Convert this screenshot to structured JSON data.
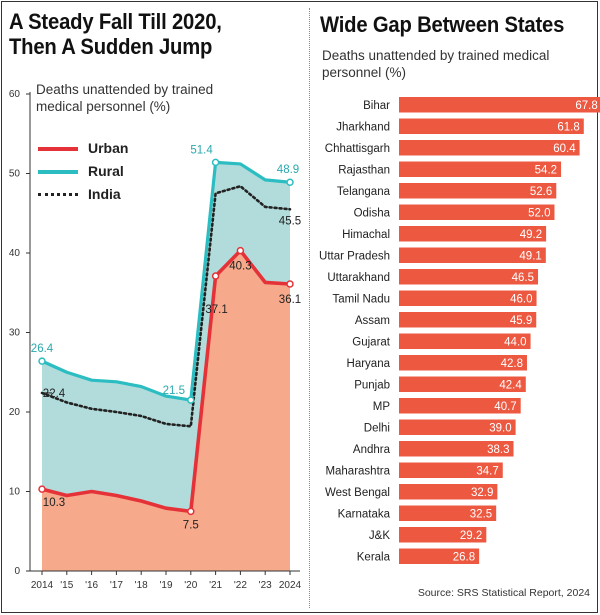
{
  "left": {
    "title_line1": "A Steady Fall Till 2020,",
    "title_line2": "Then A Sudden Jump",
    "subtitle_line1": "Deaths unattended by trained",
    "subtitle_line2": "medical personnel (%)"
  },
  "right": {
    "title": "Wide Gap Between States",
    "subtitle_line1": "Deaths unattended by trained medical",
    "subtitle_line2": "personnel (%)",
    "source": "Source: SRS Statistical Report, 2024"
  },
  "colors": {
    "urban": "#e53238",
    "rural": "#2bbdc1",
    "india": "#222222",
    "urban_fill": "#f7a98b",
    "rural_fill": "#b2dcdb",
    "bar": "#ec5840"
  },
  "chart_data": [
    {
      "type": "line",
      "x": [
        "2014",
        "'15",
        "'16",
        "'17",
        "'18",
        "'19",
        "'20",
        "'21",
        "'22",
        "'23",
        "2024"
      ],
      "ylim": [
        0,
        60
      ],
      "yticks": [
        0,
        10,
        20,
        30,
        40,
        50,
        60
      ],
      "grid": false,
      "legend_position": "top-left",
      "series": [
        {
          "name": "Urban",
          "values": [
            10.3,
            9.5,
            10.0,
            9.5,
            8.8,
            7.9,
            7.5,
            37.1,
            40.3,
            36.3,
            36.1
          ]
        },
        {
          "name": "Rural",
          "values": [
            26.4,
            25.0,
            24.0,
            23.8,
            23.2,
            22.0,
            21.5,
            51.4,
            51.2,
            49.2,
            48.9
          ]
        },
        {
          "name": "India",
          "values": [
            22.4,
            21.2,
            20.4,
            20.0,
            19.5,
            18.5,
            18.2,
            47.5,
            48.4,
            45.8,
            45.5
          ]
        }
      ],
      "annotations": [
        {
          "series": "Rural",
          "x": "2014",
          "label": "26.4"
        },
        {
          "series": "India",
          "x": "2014",
          "label": "22.4"
        },
        {
          "series": "Urban",
          "x": "2014",
          "label": "10.3"
        },
        {
          "series": "Rural",
          "x": "'20",
          "label": "21.5"
        },
        {
          "series": "Urban",
          "x": "'20",
          "label": "7.5"
        },
        {
          "series": "Rural",
          "x": "'21",
          "label": "51.4"
        },
        {
          "series": "Urban",
          "x": "'21",
          "label": "37.1"
        },
        {
          "series": "Urban",
          "x": "'22",
          "label": "40.3"
        },
        {
          "series": "Rural",
          "x": "2024",
          "label": "48.9"
        },
        {
          "series": "India",
          "x": "2024",
          "label": "45.5"
        },
        {
          "series": "Urban",
          "x": "2024",
          "label": "36.1"
        }
      ]
    },
    {
      "type": "bar",
      "orientation": "horizontal",
      "categories": [
        "Bihar",
        "Jharkhand",
        "Chhattisgarh",
        "Rajasthan",
        "Telangana",
        "Odisha",
        "Himachal",
        "Uttar Pradesh",
        "Uttarakhand",
        "Tamil Nadu",
        "Assam",
        "Gujarat",
        "Haryana",
        "Punjab",
        "MP",
        "Delhi",
        "Andhra",
        "Maharashtra",
        "West Bengal",
        "Karnataka",
        "J&K",
        "Kerala"
      ],
      "values": [
        67.8,
        61.8,
        60.4,
        54.2,
        52.6,
        52.0,
        49.2,
        49.1,
        46.5,
        46.0,
        45.9,
        44.0,
        42.8,
        42.4,
        40.7,
        39.0,
        38.3,
        34.7,
        32.9,
        32.5,
        29.2,
        26.8
      ],
      "value_labels": [
        "67.8",
        "61.8",
        "60.4",
        "54.2",
        "52.6",
        "52.0",
        "49.2",
        "49.1",
        "46.5",
        "46.0",
        "45.9",
        "44.0",
        "42.8",
        "42.4",
        "40.7",
        "39.0",
        "38.3",
        "34.7",
        "32.9",
        "32.5",
        "29.2",
        "26.8"
      ]
    }
  ]
}
